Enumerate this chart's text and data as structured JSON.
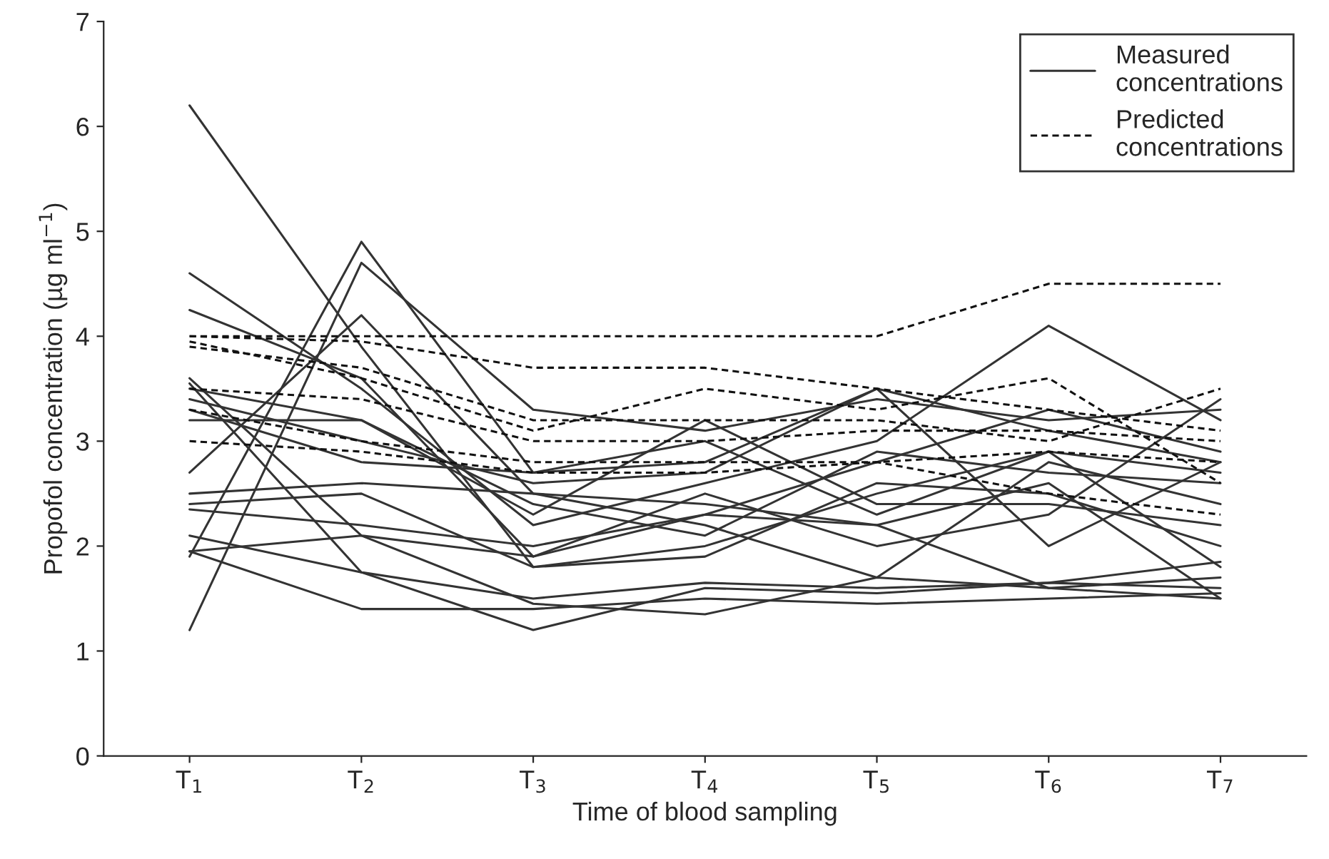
{
  "chart_data": {
    "type": "line",
    "xlabel": "Time of blood sampling",
    "ylabel": "Propofol concentration (µg ml$^{−1}$)",
    "categories": [
      "T$_{1}$",
      "T$_{2}$",
      "T$_{3}$",
      "T$_{4}$",
      "T$_{5}$",
      "T$_{6}$",
      "T$_{7}$"
    ],
    "ylim": [
      0,
      7
    ],
    "yticks": [
      0,
      1,
      2,
      3,
      4,
      5,
      6,
      7
    ],
    "grid": false,
    "legend": "top right",
    "marker": "none",
    "series": [
      {
        "name": "Measured concentrations",
        "color": "#333333",
        "line_style": "solid",
        "values": [
          6.2,
          3.9,
          1.8,
          2.0,
          2.5,
          2.9,
          2.7
        ]
      },
      {
        "color": "#333333",
        "line_style": "solid",
        "values": [
          4.6,
          3.5,
          2.2,
          2.6,
          3.0,
          4.1,
          3.2
        ]
      },
      {
        "color": "#333333",
        "line_style": "solid",
        "values": [
          4.25,
          3.6,
          1.9,
          2.3,
          2.8,
          3.3,
          2.9
        ]
      },
      {
        "color": "#333333",
        "line_style": "solid",
        "values": [
          1.9,
          4.9,
          2.7,
          2.8,
          3.5,
          3.1,
          2.8
        ]
      },
      {
        "color": "#333333",
        "line_style": "solid",
        "values": [
          1.2,
          4.7,
          3.3,
          3.1,
          3.4,
          3.2,
          3.3
        ]
      },
      {
        "color": "#333333",
        "line_style": "solid",
        "values": [
          2.7,
          4.2,
          2.5,
          2.4,
          2.2,
          2.6,
          1.5
        ]
      },
      {
        "color": "#333333",
        "line_style": "solid",
        "values": [
          3.5,
          3.2,
          2.4,
          2.1,
          2.9,
          2.7,
          2.6
        ]
      },
      {
        "color": "#333333",
        "line_style": "solid",
        "values": [
          3.4,
          3.0,
          2.6,
          2.7,
          3.5,
          2.0,
          2.8
        ]
      },
      {
        "color": "#333333",
        "line_style": "solid",
        "values": [
          3.3,
          2.8,
          2.7,
          3.0,
          2.3,
          2.9,
          1.8
        ]
      },
      {
        "color": "#333333",
        "line_style": "solid",
        "values": [
          3.2,
          3.2,
          2.3,
          3.2,
          2.4,
          2.4,
          2.2
        ]
      },
      {
        "color": "#333333",
        "line_style": "solid",
        "values": [
          2.5,
          2.6,
          2.5,
          2.2,
          1.7,
          2.8,
          2.4
        ]
      },
      {
        "color": "#333333",
        "line_style": "solid",
        "values": [
          2.4,
          2.5,
          1.8,
          1.9,
          2.6,
          2.5,
          2.0
        ]
      },
      {
        "color": "#333333",
        "line_style": "solid",
        "values": [
          2.35,
          2.2,
          2.0,
          2.3,
          2.2,
          1.6,
          1.7
        ]
      },
      {
        "color": "#333333",
        "line_style": "solid",
        "values": [
          1.95,
          2.1,
          1.45,
          1.35,
          1.7,
          1.6,
          1.5
        ]
      },
      {
        "color": "#333333",
        "line_style": "solid",
        "values": [
          2.1,
          1.75,
          1.2,
          1.6,
          1.55,
          1.65,
          1.6
        ]
      },
      {
        "color": "#333333",
        "line_style": "solid",
        "values": [
          1.95,
          1.4,
          1.4,
          1.5,
          1.45,
          1.5,
          1.55
        ]
      },
      {
        "color": "#333333",
        "line_style": "solid",
        "values": [
          3.55,
          1.75,
          1.5,
          1.65,
          1.6,
          1.65,
          1.85
        ]
      },
      {
        "color": "#333333",
        "line_style": "solid",
        "values": [
          3.6,
          2.1,
          1.9,
          2.5,
          2.0,
          2.3,
          3.4
        ]
      },
      {
        "name": "Predicted concentrations",
        "color": "#111111",
        "line_style": "dashed",
        "values": [
          4.0,
          4.0,
          4.0,
          4.0,
          4.0,
          4.5,
          4.5
        ]
      },
      {
        "color": "#111111",
        "line_style": "dashed",
        "values": [
          4.0,
          3.95,
          3.7,
          3.7,
          3.5,
          3.3,
          3.1
        ]
      },
      {
        "color": "#111111",
        "line_style": "dashed",
        "values": [
          3.9,
          3.7,
          3.2,
          3.2,
          3.2,
          3.0,
          3.5
        ]
      },
      {
        "color": "#111111",
        "line_style": "dashed",
        "values": [
          3.5,
          3.4,
          3.0,
          3.0,
          3.1,
          3.1,
          3.0
        ]
      },
      {
        "color": "#111111",
        "line_style": "dashed",
        "values": [
          3.3,
          3.0,
          2.8,
          2.8,
          2.8,
          2.9,
          2.8
        ]
      },
      {
        "color": "#111111",
        "line_style": "dashed",
        "values": [
          3.0,
          2.9,
          2.7,
          2.7,
          2.8,
          2.5,
          2.3
        ]
      },
      {
        "color": "#111111",
        "line_style": "dashed",
        "values": [
          3.95,
          3.6,
          3.1,
          3.5,
          3.3,
          3.6,
          2.6
        ]
      }
    ]
  }
}
